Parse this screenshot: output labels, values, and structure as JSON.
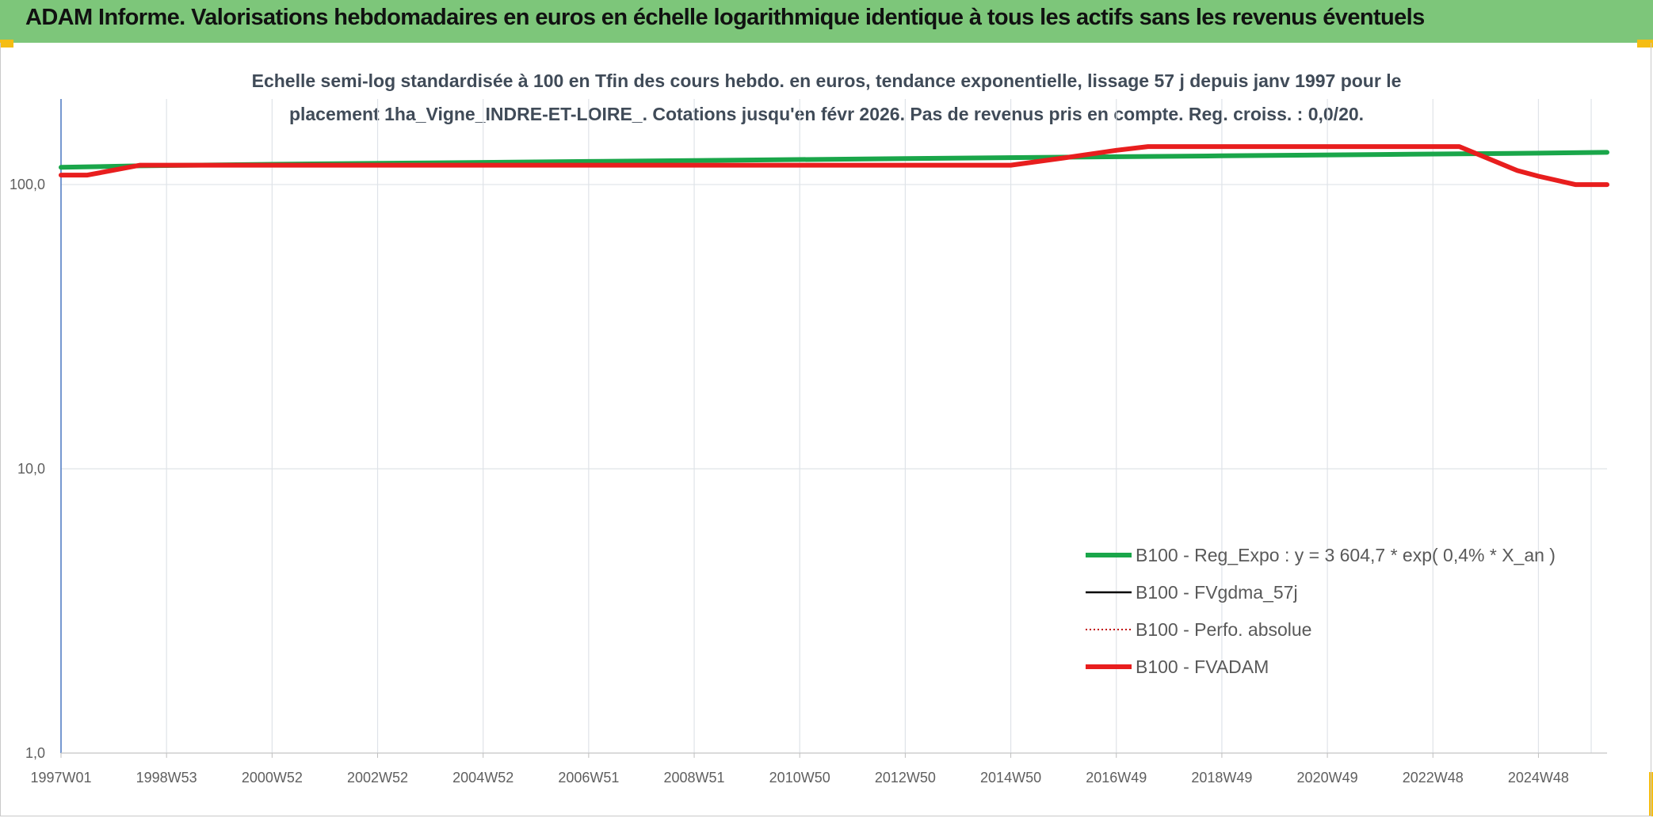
{
  "header": {
    "title": "ADAM Informe. Valorisations hebdomadaires en euros en échelle logarithmique identique à tous les actifs sans les revenus éventuels"
  },
  "colors": {
    "header_bg": "#7dc67a",
    "corner_accent": "#f5bd13",
    "reg_expo": "#1aa64a",
    "fvgdma": "#000000",
    "perfo": "#c00000",
    "fvadam": "#e81e1e"
  },
  "chart_data": {
    "type": "line",
    "title_line1": "Echelle semi-log standardisée à 100 en Tfin des cours hebdo. en euros, tendance exponentielle, lissage 57 j depuis janv 1997 pour le",
    "title_line2": "placement 1ha_Vigne_INDRE-ET-LOIRE_. Cotations jusqu'en févr 2026. Pas de revenus pris en compte. Reg. croiss. : 0,0/20.",
    "y_scale": "log",
    "ylim": [
      1,
      200
    ],
    "xlim": [
      1997.0,
      2026.3
    ],
    "y_ticks": [
      {
        "value": 1,
        "label": "1,0"
      },
      {
        "value": 10,
        "label": "10,0"
      },
      {
        "value": 100,
        "label": "100,0"
      }
    ],
    "x_ticks": [
      {
        "value": 1997.0,
        "label": "1997W01"
      },
      {
        "value": 1999.0,
        "label": "1998W53"
      },
      {
        "value": 2001.0,
        "label": "2000W52"
      },
      {
        "value": 2003.0,
        "label": "2002W52"
      },
      {
        "value": 2005.0,
        "label": "2004W52"
      },
      {
        "value": 2007.0,
        "label": "2006W51"
      },
      {
        "value": 2009.0,
        "label": "2008W51"
      },
      {
        "value": 2011.0,
        "label": "2010W50"
      },
      {
        "value": 2013.0,
        "label": "2012W50"
      },
      {
        "value": 2015.0,
        "label": "2014W50"
      },
      {
        "value": 2017.0,
        "label": "2016W49"
      },
      {
        "value": 2019.0,
        "label": "2018W49"
      },
      {
        "value": 2021.0,
        "label": "2020W49"
      },
      {
        "value": 2023.0,
        "label": "2022W48"
      },
      {
        "value": 2025.0,
        "label": "2024W48"
      }
    ],
    "extra_gridlines_x": [
      2026.0
    ],
    "grid": true,
    "legend_position": "bottom-right",
    "series": [
      {
        "name": "B100 - Reg_Expo : y = 3 604,7 * exp( 0,4% *  X_an )",
        "key": "reg_expo",
        "style": "solid-thick",
        "x": [
          1997.0,
          1998.5,
          2001.0,
          2004.0,
          2007.0,
          2010.0,
          2013.0,
          2016.0,
          2019.0,
          2022.0,
          2025.0,
          2026.3
        ],
        "y": [
          115,
          116.4,
          117.8,
          119.2,
          120.6,
          122.0,
          123.4,
          124.8,
          126.2,
          127.6,
          129.0,
          129.8
        ]
      },
      {
        "name": "B100 - FVgdma_57j",
        "key": "fvgdma",
        "style": "solid-thin",
        "x": [],
        "y": []
      },
      {
        "name": "B100 - Perfo. absolue",
        "key": "perfo",
        "style": "dotted",
        "x": [],
        "y": []
      },
      {
        "name": "B100 - FVADAM",
        "key": "fvadam",
        "style": "solid-thick",
        "x": [
          1997.0,
          1997.5,
          1998.5,
          2000.0,
          2005.0,
          2010.0,
          2015.0,
          2016.0,
          2017.0,
          2017.6,
          2019.0,
          2022.0,
          2023.5,
          2024.6,
          2025.0,
          2025.7,
          2026.0,
          2026.3
        ],
        "y": [
          108,
          108,
          117,
          117,
          117,
          117,
          117,
          124,
          132,
          136,
          136,
          136,
          136,
          112,
          107,
          100,
          100,
          100
        ]
      }
    ]
  }
}
